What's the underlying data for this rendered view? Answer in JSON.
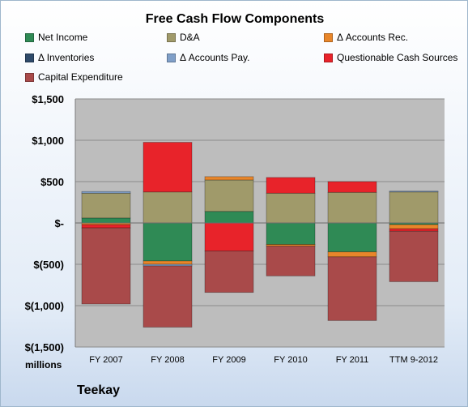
{
  "chart_data": {
    "type": "bar",
    "stacked": true,
    "title": "Free Cash Flow Components",
    "units_label": "millions",
    "company": "Teekay",
    "categories": [
      "FY 2007",
      "FY 2008",
      "FY 2009",
      "FY 2010",
      "FY 2011",
      "TTM 9-2012"
    ],
    "ylim": [
      -1500,
      1500
    ],
    "yticks": [
      1500,
      1000,
      500,
      0,
      -500,
      -1000,
      -1500
    ],
    "ytick_labels": [
      "$1,500",
      "$1,000",
      "$500",
      "$-",
      "$(500)",
      "$(1,000)",
      "$(1,500)"
    ],
    "grid": true,
    "legend_position": "top",
    "series": [
      {
        "name": "Net Income",
        "color": "#2f8a55",
        "values": [
          60,
          -460,
          140,
          -260,
          -350,
          -20
        ]
      },
      {
        "name": "D&A",
        "color": "#a09a6a",
        "values": [
          300,
          375,
          380,
          360,
          370,
          375
        ]
      },
      {
        "name": "Δ Accounts Rec.",
        "color": "#e8862a",
        "values": [
          -20,
          -40,
          40,
          -20,
          -60,
          -50
        ]
      },
      {
        "name": "Δ Inventories",
        "color": "#2e4a6a",
        "values": [
          0,
          0,
          0,
          0,
          0,
          0
        ]
      },
      {
        "name": "Δ Accounts Pay.",
        "color": "#7f9fc8",
        "values": [
          20,
          -20,
          0,
          0,
          0,
          10
        ]
      },
      {
        "name": "Questionable Cash Sources",
        "color": "#e8232a",
        "values": [
          -40,
          600,
          -340,
          190,
          130,
          -30
        ]
      },
      {
        "name": "Capital Expenditure",
        "color": "#a94a4a",
        "values": [
          -920,
          -740,
          -500,
          -360,
          -770,
          -610
        ]
      }
    ]
  }
}
